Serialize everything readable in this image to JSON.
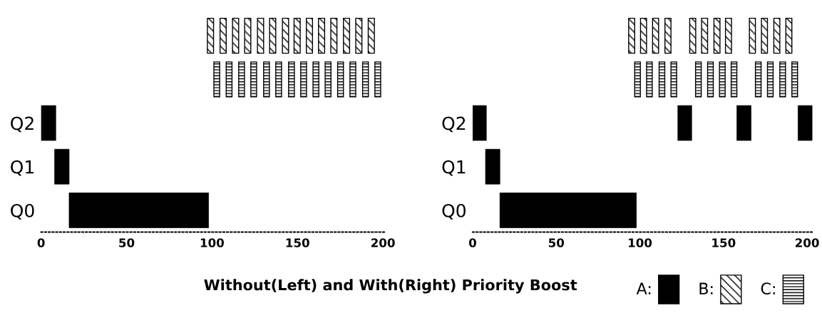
{
  "chart_data": [
    {
      "type": "bar",
      "orientation": "horizontal",
      "title": "Without(Left) and With(Right) Priority Boost",
      "categories": [
        null,
        null,
        "Q2",
        "Q1",
        "Q0"
      ],
      "xlim": [
        0,
        202
      ],
      "xticks": [
        0,
        50,
        100,
        150,
        200
      ],
      "series": [
        {
          "color": "#000000",
          "values": [
            null,
            null,
            8.6,
            8.5,
            81.6
          ],
          "base": [
            null,
            null,
            0,
            7.9,
            16.4
          ]
        },
        {
          "color": "#000000",
          "values": [
            3.6,
            null,
            null,
            null,
            null
          ],
          "base": [
            97.3,
            null,
            null,
            null,
            null
          ]
        },
        {
          "color": "#000000",
          "values": [
            3.6,
            null,
            null,
            null,
            null
          ],
          "base": [
            104.7,
            null,
            null,
            null,
            null
          ]
        },
        {
          "color": "#000000",
          "values": [
            3.6,
            null,
            null,
            null,
            null
          ],
          "base": [
            112.0,
            null,
            null,
            null,
            null
          ]
        },
        {
          "color": "#000000",
          "values": [
            3.6,
            null,
            null,
            null,
            null
          ],
          "base": [
            119.1,
            null,
            null,
            null,
            null
          ]
        },
        {
          "color": "#000000",
          "values": [
            3.6,
            null,
            null,
            null,
            null
          ],
          "base": [
            126.6,
            null,
            null,
            null,
            null
          ]
        },
        {
          "color": "#000000",
          "values": [
            3.6,
            null,
            null,
            null,
            null
          ],
          "base": [
            133.7,
            null,
            null,
            null,
            null
          ]
        },
        {
          "color": "#000000",
          "values": [
            3.6,
            null,
            null,
            null,
            null
          ],
          "base": [
            141.2,
            null,
            null,
            null,
            null
          ]
        },
        {
          "color": "#000000",
          "values": [
            3.6,
            null,
            null,
            null,
            null
          ],
          "base": [
            148.0,
            null,
            null,
            null,
            null
          ]
        },
        {
          "color": "#000000",
          "values": [
            3.6,
            null,
            null,
            null,
            null
          ],
          "base": [
            155.2,
            null,
            null,
            null,
            null
          ]
        },
        {
          "color": "#000000",
          "values": [
            3.6,
            null,
            null,
            null,
            null
          ],
          "base": [
            162.3,
            null,
            null,
            null,
            null
          ]
        },
        {
          "color": "#000000",
          "values": [
            3.6,
            null,
            null,
            null,
            null
          ],
          "base": [
            169.5,
            null,
            null,
            null,
            null
          ]
        },
        {
          "color": "#000000",
          "values": [
            3.6,
            null,
            null,
            null,
            null
          ],
          "base": [
            176.9,
            null,
            null,
            null,
            null
          ]
        },
        {
          "color": "#000000",
          "values": [
            3.6,
            null,
            null,
            null,
            null
          ],
          "base": [
            184.1,
            null,
            null,
            null,
            null
          ]
        },
        {
          "color": "#000000",
          "values": [
            3.6,
            null,
            null,
            null,
            null
          ],
          "base": [
            191.4,
            null,
            null,
            null,
            null
          ]
        },
        {
          "color": "#000000",
          "values": [
            null,
            3.4,
            null,
            null,
            null
          ],
          "base": [
            null,
            101.1,
            null,
            null,
            null
          ]
        },
        {
          "color": "#000000",
          "values": [
            null,
            3.4,
            null,
            null,
            null
          ],
          "base": [
            null,
            108.3,
            null,
            null,
            null
          ]
        },
        {
          "color": "#000000",
          "values": [
            null,
            3.4,
            null,
            null,
            null
          ],
          "base": [
            null,
            115.6,
            null,
            null,
            null
          ]
        },
        {
          "color": "#000000",
          "values": [
            null,
            3.4,
            null,
            null,
            null
          ],
          "base": [
            null,
            122.7,
            null,
            null,
            null
          ]
        },
        {
          "color": "#000000",
          "values": [
            null,
            3.4,
            null,
            null,
            null
          ],
          "base": [
            null,
            130.2,
            null,
            null,
            null
          ]
        },
        {
          "color": "#000000",
          "values": [
            null,
            3.4,
            null,
            null,
            null
          ],
          "base": [
            null,
            137.3,
            null,
            null,
            null
          ]
        },
        {
          "color": "#000000",
          "values": [
            null,
            3.4,
            null,
            null,
            null
          ],
          "base": [
            null,
            144.8,
            null,
            null,
            null
          ]
        },
        {
          "color": "#000000",
          "values": [
            null,
            3.4,
            null,
            null,
            null
          ],
          "base": [
            null,
            151.9,
            null,
            null,
            null
          ]
        },
        {
          "color": "#000000",
          "values": [
            null,
            3.4,
            null,
            null,
            null
          ],
          "base": [
            null,
            159.1,
            null,
            null,
            null
          ]
        },
        {
          "color": "#000000",
          "values": [
            null,
            3.4,
            null,
            null,
            null
          ],
          "base": [
            null,
            166.2,
            null,
            null,
            null
          ]
        },
        {
          "color": "#000000",
          "values": [
            null,
            3.4,
            null,
            null,
            null
          ],
          "base": [
            null,
            173.5,
            null,
            null,
            null
          ]
        },
        {
          "color": "#000000",
          "values": [
            null,
            3.4,
            null,
            null,
            null
          ],
          "base": [
            null,
            180.7,
            null,
            null,
            null
          ]
        },
        {
          "color": "#000000",
          "values": [
            null,
            3.4,
            null,
            null,
            null
          ],
          "base": [
            null,
            188.1,
            null,
            null,
            null
          ]
        },
        {
          "color": "#000000",
          "values": [
            null,
            3.4,
            null,
            null,
            null
          ],
          "base": [
            null,
            195.3,
            null,
            null,
            null
          ]
        }
      ]
    },
    {
      "type": "bar",
      "orientation": "horizontal",
      "categories": [
        null,
        null,
        "Q2",
        "Q1",
        "Q0"
      ],
      "xlim": [
        0,
        204
      ],
      "xticks": [
        0,
        50,
        100,
        150,
        200
      ],
      "legend": "bottom right",
      "series": [
        {
          "name": "A:",
          "color": "#000000",
          "values": [
            null,
            null,
            8.2,
            8.6,
            81.6
          ],
          "base": [
            null,
            null,
            0,
            7.7,
            16.3
          ]
        },
        {
          "color": "#000000",
          "values": [
            null,
            null,
            8.3,
            null,
            null
          ],
          "base": [
            null,
            null,
            122.7,
            null,
            null
          ]
        },
        {
          "color": "#000000",
          "values": [
            null,
            null,
            8.5,
            null,
            null
          ],
          "base": [
            null,
            null,
            158.0,
            null,
            null
          ]
        },
        {
          "color": "#000000",
          "values": [
            null,
            null,
            8.4,
            null,
            null
          ],
          "base": [
            null,
            null,
            194.6,
            null,
            null
          ]
        },
        {
          "name": "B:",
          "color": "#000000",
          "values": [
            3.6,
            null,
            null,
            null,
            null
          ],
          "base": [
            93.3,
            null,
            null,
            null,
            null
          ]
        },
        {
          "color": "#000000",
          "values": [
            3.6,
            null,
            null,
            null,
            null
          ],
          "base": [
            100.4,
            null,
            null,
            null,
            null
          ]
        },
        {
          "color": "#000000",
          "values": [
            3.6,
            null,
            null,
            null,
            null
          ],
          "base": [
            107.6,
            null,
            null,
            null,
            null
          ]
        },
        {
          "color": "#000000",
          "values": [
            3.6,
            null,
            null,
            null,
            null
          ],
          "base": [
            115.0,
            null,
            null,
            null,
            null
          ]
        },
        {
          "color": "#000000",
          "values": [
            3.6,
            null,
            null,
            null,
            null
          ],
          "base": [
            129.8,
            null,
            null,
            null,
            null
          ]
        },
        {
          "color": "#000000",
          "values": [
            3.6,
            null,
            null,
            null,
            null
          ],
          "base": [
            136.9,
            null,
            null,
            null,
            null
          ]
        },
        {
          "color": "#000000",
          "values": [
            3.6,
            null,
            null,
            null,
            null
          ],
          "base": [
            144.3,
            null,
            null,
            null,
            null
          ]
        },
        {
          "color": "#000000",
          "values": [
            3.6,
            null,
            null,
            null,
            null
          ],
          "base": [
            151.2,
            null,
            null,
            null,
            null
          ]
        },
        {
          "color": "#000000",
          "values": [
            3.6,
            null,
            null,
            null,
            null
          ],
          "base": [
            165.5,
            null,
            null,
            null,
            null
          ]
        },
        {
          "color": "#000000",
          "values": [
            3.6,
            null,
            null,
            null,
            null
          ],
          "base": [
            172.7,
            null,
            null,
            null,
            null
          ]
        },
        {
          "color": "#000000",
          "values": [
            3.6,
            null,
            null,
            null,
            null
          ],
          "base": [
            180.1,
            null,
            null,
            null,
            null
          ]
        },
        {
          "color": "#000000",
          "values": [
            3.6,
            null,
            null,
            null,
            null
          ],
          "base": [
            187.3,
            null,
            null,
            null,
            null
          ]
        },
        {
          "name": "C:",
          "color": "#000000",
          "values": [
            null,
            3.4,
            null,
            null,
            null
          ],
          "base": [
            null,
            96.9,
            null,
            null,
            null
          ]
        },
        {
          "color": "#000000",
          "values": [
            null,
            3.4,
            null,
            null,
            null
          ],
          "base": [
            null,
            104.0,
            null,
            null,
            null
          ]
        },
        {
          "color": "#000000",
          "values": [
            null,
            3.4,
            null,
            null,
            null
          ],
          "base": [
            null,
            111.5,
            null,
            null,
            null
          ]
        },
        {
          "color": "#000000",
          "values": [
            null,
            3.4,
            null,
            null,
            null
          ],
          "base": [
            null,
            118.6,
            null,
            null,
            null
          ]
        },
        {
          "color": "#000000",
          "values": [
            null,
            3.4,
            null,
            null,
            null
          ],
          "base": [
            null,
            133.3,
            null,
            null,
            null
          ]
        },
        {
          "color": "#000000",
          "values": [
            null,
            3.4,
            null,
            null,
            null
          ],
          "base": [
            null,
            140.5,
            null,
            null,
            null
          ]
        },
        {
          "color": "#000000",
          "values": [
            null,
            3.4,
            null,
            null,
            null
          ],
          "base": [
            null,
            147.6,
            null,
            null,
            null
          ]
        },
        {
          "color": "#000000",
          "values": [
            null,
            3.4,
            null,
            null,
            null
          ],
          "base": [
            null,
            154.6,
            null,
            null,
            null
          ]
        },
        {
          "color": "#000000",
          "values": [
            null,
            3.4,
            null,
            null,
            null
          ],
          "base": [
            null,
            169.1,
            null,
            null,
            null
          ]
        },
        {
          "color": "#000000",
          "values": [
            null,
            3.4,
            null,
            null,
            null
          ],
          "base": [
            null,
            176.3,
            null,
            null,
            null
          ]
        },
        {
          "color": "#000000",
          "values": [
            null,
            3.4,
            null,
            null,
            null
          ],
          "base": [
            null,
            183.7,
            null,
            null,
            null
          ]
        },
        {
          "color": "#000000",
          "values": [
            null,
            3.4,
            null,
            null,
            null
          ],
          "base": [
            null,
            190.9,
            null,
            null,
            null
          ]
        }
      ]
    }
  ]
}
